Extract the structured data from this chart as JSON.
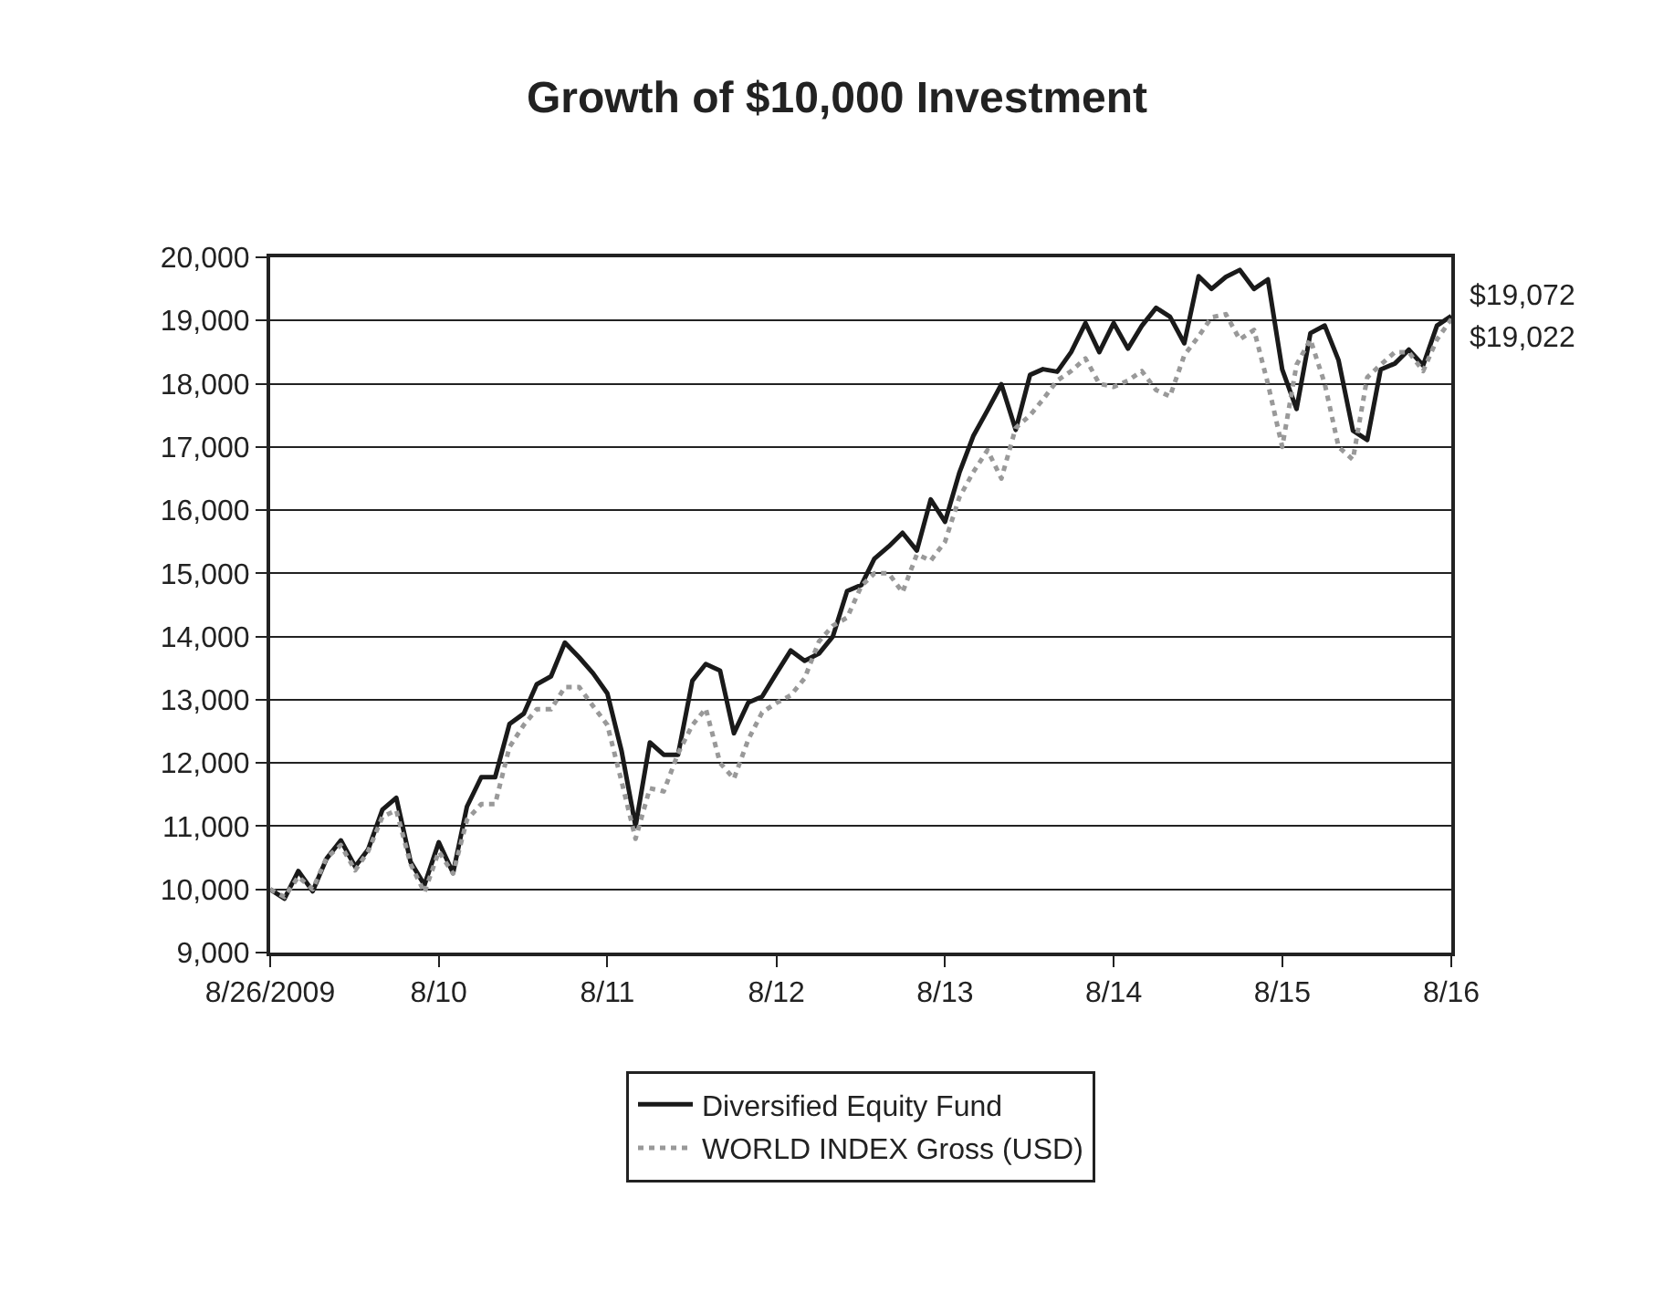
{
  "chart_data": {
    "type": "line",
    "title": "Growth of $10,000 Investment",
    "x": [
      "2009-08",
      "2009-09",
      "2009-10",
      "2009-11",
      "2009-12",
      "2010-01",
      "2010-02",
      "2010-03",
      "2010-04",
      "2010-05",
      "2010-06",
      "2010-07",
      "2010-08",
      "2010-09",
      "2010-10",
      "2010-11",
      "2010-12",
      "2011-01",
      "2011-02",
      "2011-03",
      "2011-04",
      "2011-05",
      "2011-06",
      "2011-07",
      "2011-08",
      "2011-09",
      "2011-10",
      "2011-11",
      "2011-12",
      "2012-01",
      "2012-02",
      "2012-03",
      "2012-04",
      "2012-05",
      "2012-06",
      "2012-07",
      "2012-08",
      "2012-09",
      "2012-10",
      "2012-11",
      "2012-12",
      "2013-01",
      "2013-02",
      "2013-03",
      "2013-04",
      "2013-05",
      "2013-06",
      "2013-07",
      "2013-08",
      "2013-09",
      "2013-10",
      "2013-11",
      "2013-12",
      "2014-01",
      "2014-02",
      "2014-03",
      "2014-04",
      "2014-05",
      "2014-06",
      "2014-07",
      "2014-08",
      "2014-09",
      "2014-10",
      "2014-11",
      "2014-12",
      "2015-01",
      "2015-02",
      "2015-03",
      "2015-04",
      "2015-05",
      "2015-06",
      "2015-07",
      "2015-08",
      "2015-09",
      "2015-10",
      "2015-11",
      "2015-12",
      "2016-01",
      "2016-02",
      "2016-03",
      "2016-04",
      "2016-05",
      "2016-06",
      "2016-07",
      "2016-08"
    ],
    "series": [
      {
        "name": "Diversified Equity Fund",
        "color": "#1a1a1a",
        "line_style": "solid",
        "values": [
          10000,
          9855,
          10290,
          9970,
          10485,
          10775,
          10360,
          10630,
          11260,
          11450,
          10435,
          10070,
          10745,
          10260,
          11310,
          11775,
          11775,
          12615,
          12780,
          13245,
          13370,
          13905,
          13670,
          13420,
          13100,
          12180,
          11000,
          12325,
          12130,
          12130,
          13300,
          13565,
          13460,
          12470,
          12955,
          13050,
          13420,
          13780,
          13615,
          13730,
          14000,
          14720,
          14815,
          15230,
          15425,
          15640,
          15360,
          16170,
          15815,
          16590,
          17170,
          17580,
          17990,
          17270,
          18140,
          18230,
          18190,
          18500,
          18960,
          18500,
          18960,
          18555,
          18915,
          19200,
          19060,
          18640,
          19700,
          19500,
          19690,
          19800,
          19500,
          19650,
          18225,
          17600,
          18800,
          18920,
          18370,
          17260,
          17110,
          18225,
          18320,
          18540,
          18290,
          18920,
          19072
        ]
      },
      {
        "name": "WORLD INDEX Gross (USD)",
        "color": "#999999",
        "line_style": "dotted",
        "values": [
          10000,
          9880,
          10200,
          10000,
          10500,
          10700,
          10300,
          10600,
          11150,
          11250,
          10400,
          9950,
          10600,
          10250,
          11100,
          11350,
          11350,
          12250,
          12600,
          12850,
          12850,
          13200,
          13200,
          12900,
          12600,
          11700,
          10800,
          11600,
          11550,
          12150,
          12600,
          12860,
          12000,
          11750,
          12370,
          12800,
          12950,
          13070,
          13340,
          13920,
          14170,
          14300,
          14800,
          15000,
          15000,
          14700,
          15300,
          15200,
          15500,
          16200,
          16600,
          16950,
          16500,
          17300,
          17500,
          17750,
          18050,
          18200,
          18400,
          18000,
          17950,
          18050,
          18200,
          17900,
          17800,
          18450,
          18750,
          19050,
          19100,
          18700,
          18850,
          18000,
          17000,
          18300,
          18700,
          18000,
          17000,
          16800,
          18100,
          18300,
          18500,
          18500,
          18200,
          18700,
          19022
        ]
      }
    ],
    "xlim": [
      "2009-08",
      "2016-08"
    ],
    "xticks": [
      {
        "value": "2009-08",
        "label": "8/26/2009"
      },
      {
        "value": "2010-08",
        "label": "8/10"
      },
      {
        "value": "2011-08",
        "label": "8/11"
      },
      {
        "value": "2012-08",
        "label": "8/12"
      },
      {
        "value": "2013-08",
        "label": "8/13"
      },
      {
        "value": "2014-08",
        "label": "8/14"
      },
      {
        "value": "2015-08",
        "label": "8/15"
      },
      {
        "value": "2016-08",
        "label": "8/16"
      }
    ],
    "ylim": [
      9000,
      20000
    ],
    "yticks": [
      {
        "value": 9000,
        "label": "9,000"
      },
      {
        "value": 10000,
        "label": "10,000"
      },
      {
        "value": 11000,
        "label": "11,000"
      },
      {
        "value": 12000,
        "label": "12,000"
      },
      {
        "value": 13000,
        "label": "13,000"
      },
      {
        "value": 14000,
        "label": "14,000"
      },
      {
        "value": 15000,
        "label": "15,000"
      },
      {
        "value": 16000,
        "label": "16,000"
      },
      {
        "value": 17000,
        "label": "17,000"
      },
      {
        "value": 18000,
        "label": "18,000"
      },
      {
        "value": 19000,
        "label": "19,000"
      },
      {
        "value": 20000,
        "label": "20,000"
      }
    ],
    "annotations": [
      {
        "text": "$19,072",
        "x": "2016-08",
        "y": 19072
      },
      {
        "text": "$19,022",
        "x": "2016-08",
        "y": 19022
      }
    ],
    "grid": "y",
    "legend": "bottom",
    "marker": "none"
  }
}
